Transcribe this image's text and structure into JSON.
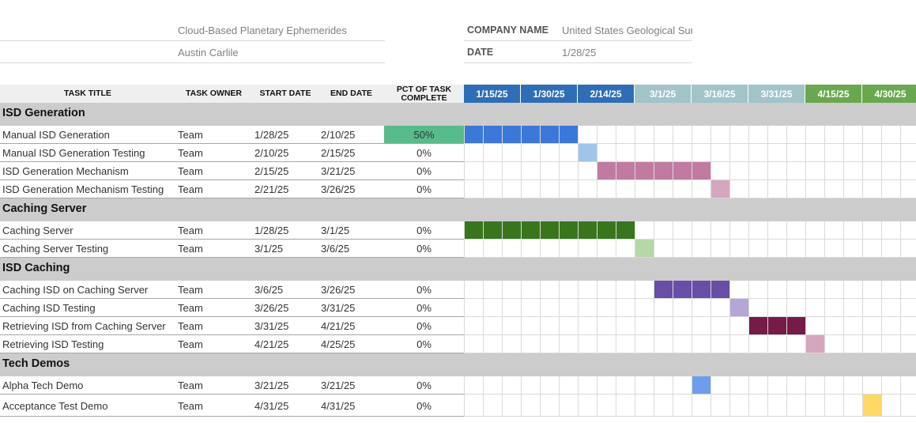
{
  "project": {
    "name": "Cloud-Based Planetary Ephemerides",
    "manager": "Austin Carlile",
    "company_label": "COMPANY NAME",
    "company_value": "United States Geological Survey",
    "date_label": "DATE",
    "date_value": "1/28/25"
  },
  "columns": {
    "title": "TASK TITLE",
    "owner": "TASK OWNER",
    "start": "START DATE",
    "end": "END DATE",
    "pct": "PCT OF TASK COMPLETE"
  },
  "timeline": {
    "dates": [
      "1/15/25",
      "1/30/25",
      "2/14/25",
      "3/1/25",
      "3/16/25",
      "3/31/25",
      "4/15/25",
      "4/30/25"
    ],
    "header_colors": [
      "#2f6eb5",
      "#2f6eb5",
      "#2f6eb5",
      "#a2c4c9",
      "#a2c4c9",
      "#a2c4c9",
      "#6aa84f",
      "#6aa84f"
    ],
    "units_per_date": 3,
    "total_units": 24
  },
  "sections": [
    {
      "name": "ISD Generation",
      "tasks": [
        {
          "title": "Manual ISD Generation",
          "owner": "Team",
          "start": "1/28/25",
          "end": "2/10/25",
          "pct": "50%",
          "pct_color": "#57bb8a",
          "bar_start": 0,
          "bar_units": 6,
          "bar_color": "#3c78d8"
        },
        {
          "title": "Manual ISD Generation Testing",
          "owner": "Team",
          "start": "2/10/25",
          "end": "2/15/25",
          "pct": "0%",
          "bar_start": 6,
          "bar_units": 1,
          "bar_color": "#9fc5e8"
        },
        {
          "title": "ISD Generation Mechanism",
          "owner": "Team",
          "start": "2/15/25",
          "end": "3/21/25",
          "pct": "0%",
          "bar_start": 7,
          "bar_units": 6,
          "bar_color": "#c27ba0"
        },
        {
          "title": "ISD Generation Mechanism Testing",
          "owner": "Team",
          "start": "2/21/25",
          "end": "3/26/25",
          "pct": "0%",
          "bar_start": 13,
          "bar_units": 1,
          "bar_color": "#d5a6bd"
        }
      ]
    },
    {
      "name": "Caching Server",
      "tasks": [
        {
          "title": "Caching Server",
          "owner": "Team",
          "start": "1/28/25",
          "end": "3/1/25",
          "pct": "0%",
          "bar_start": 0,
          "bar_units": 9,
          "bar_color": "#38761d"
        },
        {
          "title": "Caching Server Testing",
          "owner": "Team",
          "start": "3/1/25",
          "end": "3/6/25",
          "pct": "0%",
          "bar_start": 9,
          "bar_units": 1,
          "bar_color": "#b6d7a8"
        }
      ]
    },
    {
      "name": "ISD Caching",
      "tasks": [
        {
          "title": "Caching ISD on Caching Server",
          "owner": "Team",
          "start": "3/6/25",
          "end": "3/26/25",
          "pct": "0%",
          "bar_start": 10,
          "bar_units": 4,
          "bar_color": "#674ea7"
        },
        {
          "title": "Caching ISD Testing",
          "owner": "Team",
          "start": "3/26/25",
          "end": "3/31/25",
          "pct": "0%",
          "bar_start": 14,
          "bar_units": 1,
          "bar_color": "#b4a7d6"
        },
        {
          "title": "Retrieving ISD from Caching Server",
          "owner": "Team",
          "start": "3/31/25",
          "end": "4/21/25",
          "pct": "0%",
          "bar_start": 15,
          "bar_units": 3,
          "bar_color": "#741b47"
        },
        {
          "title": "Retrieving ISD Testing",
          "owner": "Team",
          "start": "4/21/25",
          "end": "4/25/25",
          "pct": "0%",
          "bar_start": 18,
          "bar_units": 1,
          "bar_color": "#d5a6bd"
        }
      ]
    },
    {
      "name": "Tech Demos",
      "tasks": [
        {
          "title": "Alpha Tech Demo",
          "owner": "Team",
          "start": "3/21/25",
          "end": "3/21/25",
          "pct": "0%",
          "bar_start": 12,
          "bar_units": 1,
          "bar_color": "#6d9eeb"
        },
        {
          "title": "Acceptance Test Demo",
          "owner": "Team",
          "start": "4/31/25",
          "end": "4/31/25",
          "pct": "0%",
          "bar_start": 21,
          "bar_units": 1,
          "bar_color": "#ffd966"
        }
      ]
    }
  ]
}
